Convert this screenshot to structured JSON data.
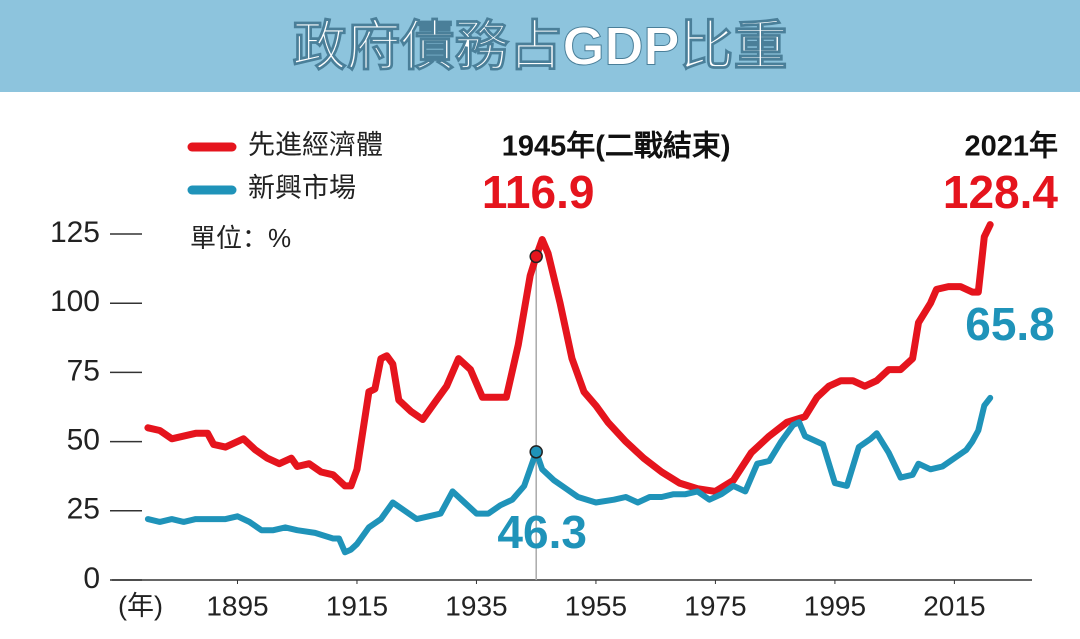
{
  "chart_data": {
    "type": "line",
    "title": "政府債務占GDP比重",
    "x_label": "(年)",
    "unit_label": "單位：%",
    "xlim": [
      1875,
      2030
    ],
    "xticks": [
      1895,
      1915,
      1935,
      1955,
      1975,
      1995,
      2015
    ],
    "ylim": [
      0,
      125
    ],
    "yticks": [
      0,
      25,
      50,
      75,
      100,
      125
    ],
    "grid": false,
    "legend": "top-left",
    "annotations": [
      {
        "text": "1945年(二戰結束)",
        "x": 1945,
        "marker": true
      },
      {
        "text": "2021年",
        "x": 2021,
        "marker": false
      }
    ],
    "series": [
      {
        "name": "先進經濟體",
        "color": "#e5141d",
        "x": [
          1880,
          1882,
          1884,
          1886,
          1888,
          1890,
          1891,
          1893,
          1895,
          1896,
          1898,
          1900,
          1902,
          1904,
          1905,
          1907,
          1909,
          1911,
          1913,
          1914,
          1915,
          1917,
          1918,
          1919,
          1920,
          1921,
          1922,
          1924,
          1926,
          1928,
          1930,
          1932,
          1934,
          1936,
          1938,
          1940,
          1942,
          1944,
          1945,
          1946,
          1947,
          1949,
          1951,
          1953,
          1955,
          1957,
          1960,
          1963,
          1966,
          1969,
          1972,
          1975,
          1978,
          1981,
          1984,
          1987,
          1990,
          1992,
          1994,
          1996,
          1998,
          2000,
          2002,
          2004,
          2006,
          2008,
          2009,
          2011,
          2012,
          2014,
          2016,
          2018,
          2019,
          2020,
          2021
        ],
        "values": [
          55,
          54,
          51,
          52,
          53,
          53,
          49,
          48,
          50,
          51,
          47,
          44,
          42,
          44,
          41,
          42,
          39,
          38,
          34,
          34,
          40,
          68,
          69,
          80,
          81,
          78,
          65,
          61,
          58,
          64,
          70,
          80,
          76,
          66,
          66,
          66,
          85,
          110,
          116.9,
          123,
          118,
          100,
          80,
          68,
          63,
          57,
          50,
          44,
          39,
          35,
          33,
          32,
          36,
          46,
          52,
          57,
          59,
          66,
          70,
          72,
          72,
          70,
          72,
          76,
          76,
          80,
          93,
          100,
          105,
          106,
          106,
          104,
          104,
          124,
          128.4
        ]
      },
      {
        "name": "新興市場",
        "color": "#1f93b9",
        "x": [
          1880,
          1882,
          1884,
          1886,
          1888,
          1890,
          1893,
          1895,
          1897,
          1899,
          1901,
          1903,
          1905,
          1908,
          1911,
          1912,
          1913,
          1914,
          1915,
          1917,
          1919,
          1921,
          1923,
          1925,
          1927,
          1929,
          1931,
          1933,
          1935,
          1937,
          1939,
          1941,
          1943,
          1945,
          1946,
          1948,
          1950,
          1952,
          1955,
          1958,
          1960,
          1962,
          1964,
          1966,
          1968,
          1970,
          1972,
          1974,
          1976,
          1978,
          1980,
          1982,
          1984,
          1986,
          1988,
          1989,
          1990,
          1993,
          1995,
          1997,
          1999,
          2001,
          2002,
          2004,
          2006,
          2008,
          2009,
          2011,
          2013,
          2015,
          2017,
          2018,
          2019,
          2020,
          2021
        ],
        "values": [
          22,
          21,
          22,
          21,
          22,
          22,
          22,
          23,
          21,
          18,
          18,
          19,
          18,
          17,
          15,
          15,
          10,
          11,
          13,
          19,
          22,
          28,
          25,
          22,
          23,
          24,
          32,
          28,
          24,
          24,
          27,
          29,
          34,
          46.3,
          40,
          36,
          33,
          30,
          28,
          29,
          30,
          28,
          30,
          30,
          31,
          31,
          32,
          29,
          31,
          34,
          32,
          42,
          43,
          50,
          56,
          57,
          52,
          49,
          35,
          34,
          48,
          51,
          53,
          46,
          37,
          38,
          42,
          40,
          41,
          44,
          47,
          50,
          54,
          63,
          65.8
        ]
      }
    ]
  }
}
